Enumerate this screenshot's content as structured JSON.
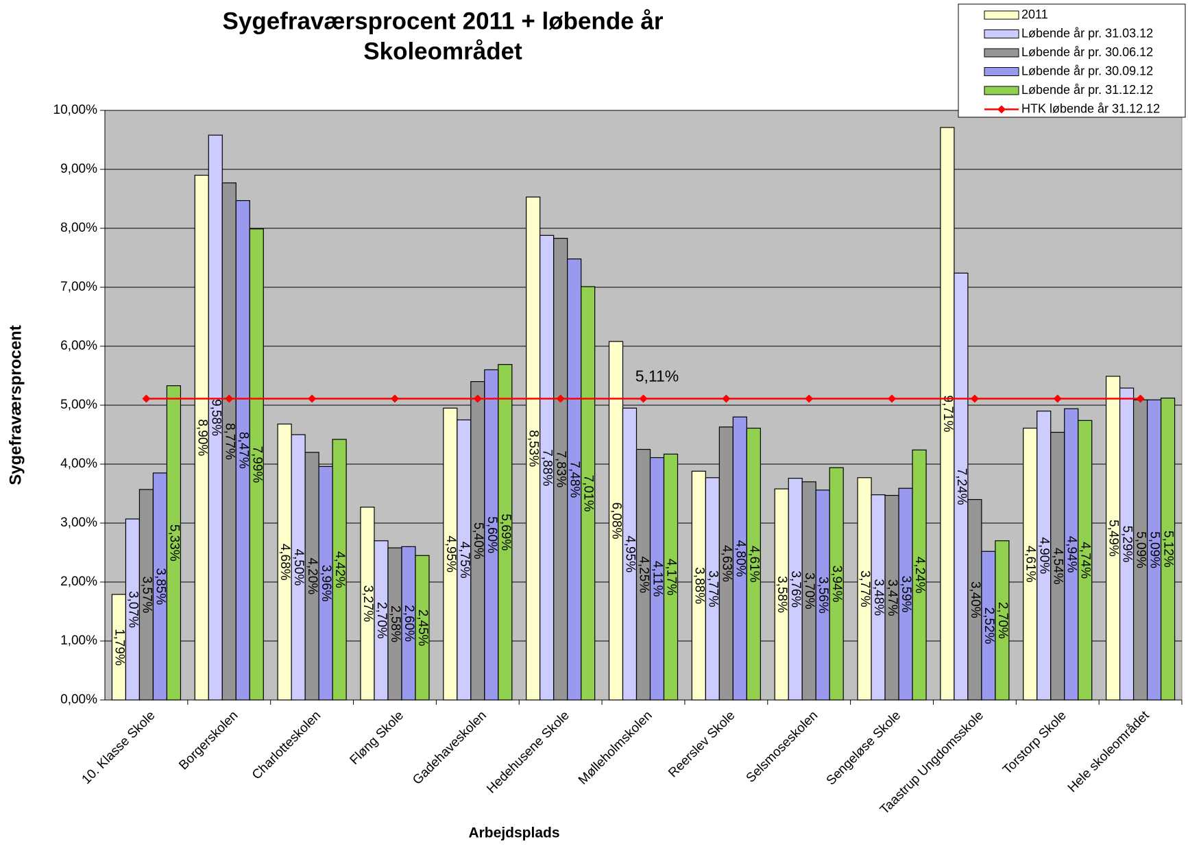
{
  "chart_data": {
    "type": "bar",
    "title": "Sygefraværsprocent 2011 + løbende år",
    "subtitle": "Skoleområdet",
    "x_label": "Arbejdsplads",
    "y_label": "Sygefraværsprocent",
    "categories": [
      "10. Klasse Skole",
      "Borgerskolen",
      "Charlotteskolen",
      "Fløng Skole",
      "Gadehaveskolen",
      "Hedehusene Skole",
      "Mølleholmskolen",
      "Reerslev Skole",
      "Selsmoseskolen",
      "Sengeløse Skole",
      "Taastrup Ungdomsskole",
      "Torstorp Skole",
      "Hele skoleområdet"
    ],
    "series": [
      {
        "name": "2011",
        "color": "#ffffcc",
        "values": [
          1.79,
          8.9,
          4.68,
          3.27,
          4.95,
          8.53,
          6.08,
          3.88,
          3.58,
          3.77,
          9.71,
          4.61,
          5.49
        ],
        "value_labels": [
          "1,79%",
          "8,90%",
          "4,68%",
          "3,27%",
          "4,95%",
          "8,53%",
          "6,08%",
          "3,88%",
          "3,58%",
          "3,77%",
          "9,71%",
          "4,61%",
          "5,49%"
        ]
      },
      {
        "name": "Løbende år pr. 31.03.12",
        "color": "#ccccff",
        "values": [
          3.07,
          9.58,
          4.5,
          2.7,
          4.75,
          7.88,
          4.95,
          3.77,
          3.76,
          3.48,
          7.24,
          4.9,
          5.29
        ],
        "value_labels": [
          "3,07%",
          "9,58%",
          "4,50%",
          "2,70%",
          "4,75%",
          "7,88%",
          "4,95%",
          "3,77%",
          "3,76%",
          "3,48%",
          "7,24%",
          "4,90%",
          "5,29%"
        ]
      },
      {
        "name": "Løbende år pr. 30.06.12",
        "color": "#969696",
        "values": [
          3.57,
          8.77,
          4.2,
          2.58,
          5.4,
          7.83,
          4.25,
          4.63,
          3.7,
          3.47,
          3.4,
          4.54,
          5.09
        ],
        "value_labels": [
          "3,57%",
          "8,77%",
          "4,20%",
          "2,58%",
          "5,40%",
          "7,83%",
          "4,25%",
          "4,63%",
          "3,70%",
          "3,47%",
          "3,40%",
          "4,54%",
          "5,09%"
        ]
      },
      {
        "name": "Løbende år pr. 30.09.12",
        "color": "#9999ee",
        "values": [
          3.85,
          8.47,
          3.96,
          2.6,
          5.6,
          7.48,
          4.11,
          4.8,
          3.56,
          3.59,
          2.52,
          4.94,
          5.09
        ],
        "value_labels": [
          "3,85%",
          "8,47%",
          "3,96%",
          "2,60%",
          "5,60%",
          "7,48%",
          "4,11%",
          "4,80%",
          "3,56%",
          "3,59%",
          "2,52%",
          "4,94%",
          "5,09%"
        ]
      },
      {
        "name": "Løbende år pr. 31.12.12",
        "color": "#92d050",
        "values": [
          5.33,
          7.99,
          4.42,
          2.45,
          5.69,
          7.01,
          4.17,
          4.61,
          3.94,
          4.24,
          2.7,
          4.74,
          5.12
        ],
        "value_labels": [
          "5,33%",
          "7,99%",
          "4,42%",
          "2,45%",
          "5,69%",
          "7,01%",
          "4,17%",
          "4,61%",
          "3,94%",
          "4,24%",
          "2,70%",
          "4,74%",
          "5,12%"
        ]
      },
      {
        "name": "HTK løbende år 31.12.12",
        "type": "line",
        "color": "#ff0000",
        "values": [
          5.11,
          5.11,
          5.11,
          5.11,
          5.11,
          5.11,
          5.11,
          5.11,
          5.11,
          5.11,
          5.11,
          5.11,
          5.11
        ]
      }
    ],
    "annotation": "5,11%",
    "ylim": [
      0,
      10
    ],
    "yticks": [
      {
        "value": 0,
        "label": "0,00%"
      },
      {
        "value": 1,
        "label": "1,00%"
      },
      {
        "value": 2,
        "label": "2,00%"
      },
      {
        "value": 3,
        "label": "3,00%"
      },
      {
        "value": 4,
        "label": "4,00%"
      },
      {
        "value": 5,
        "label": "5,00%"
      },
      {
        "value": 6,
        "label": "6,00%"
      },
      {
        "value": 7,
        "label": "7,00%"
      },
      {
        "value": 8,
        "label": "8,00%"
      },
      {
        "value": 9,
        "label": "9,00%"
      },
      {
        "value": 10,
        "label": "10,00%"
      }
    ],
    "grid": true,
    "legend": "top-right",
    "plot_background": "#c0c0c0"
  }
}
